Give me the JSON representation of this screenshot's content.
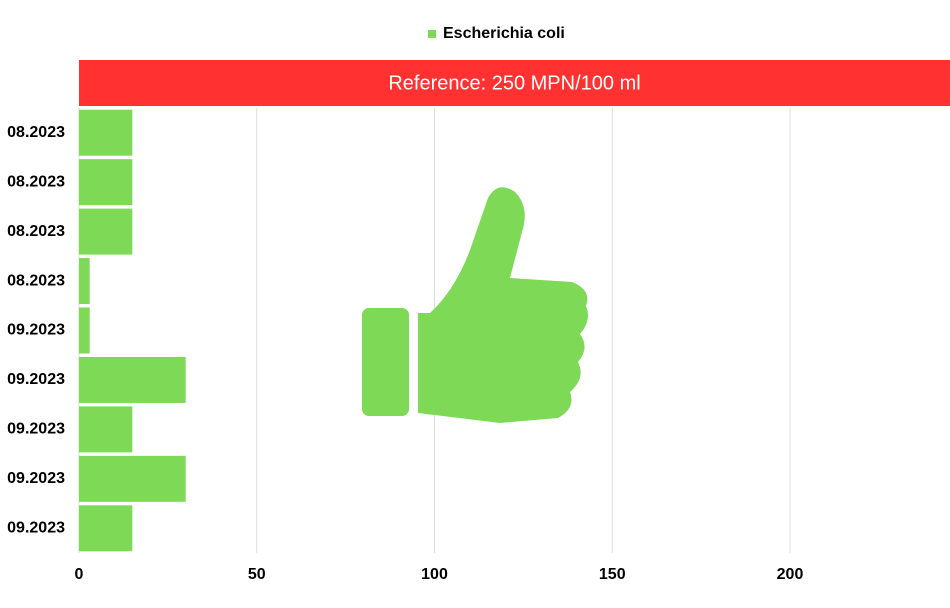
{
  "chart_data": {
    "type": "hbar",
    "categories": [
      "08.2023",
      "08.2023",
      "08.2023",
      "08.2023",
      "09.2023",
      "09.2023",
      "09.2023",
      "09.2023",
      "09.2023"
    ],
    "series": [
      {
        "name": "Escherichia coli",
        "color": "#7ed957",
        "values": [
          15,
          15,
          15,
          3,
          3,
          30,
          15,
          30,
          15
        ]
      }
    ],
    "xlim": [
      0,
      245
    ],
    "xticks": [
      0,
      50,
      100,
      150,
      200
    ],
    "grid": true,
    "legend": "top",
    "annotation": {
      "text": "Reference: 250 MPN/100 ml",
      "color": "#ff3131"
    }
  }
}
